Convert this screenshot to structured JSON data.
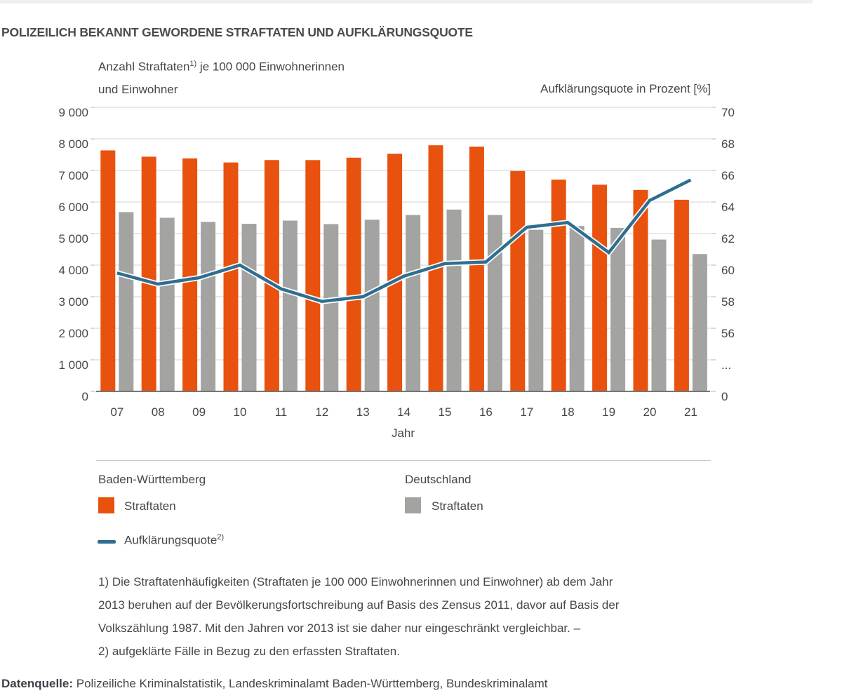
{
  "page": {
    "title": "POLIZEILICH BEKANNT GEWORDENE STRAFTATEN UND AUFKLÄRUNGSQUOTE",
    "source_label": "Datenquelle:",
    "source_text": " Polizeiliche Kriminalstatistik, Landeskriminalamt Baden-Württemberg, Bundeskriminalamt"
  },
  "colors": {
    "bw_bar": "#e8520e",
    "de_bar": "#a3a3a2",
    "clearance_line": "#2f6e91",
    "line_casing": "#ffffff",
    "gridline": "#dcdcdc",
    "tick": "#c6c6c6",
    "axis_line": "#767676",
    "text": "#43484d"
  },
  "chart_data": {
    "type": "bar",
    "subtype": "grouped bars with secondary-axis line",
    "title": "Polizeilich bekannt gewordene Straftaten und Aufklärungsquote",
    "xlabel": "Jahr",
    "x": [
      "07",
      "08",
      "09",
      "10",
      "11",
      "12",
      "13",
      "14",
      "15",
      "16",
      "17",
      "18",
      "19",
      "20",
      "21"
    ],
    "left_axis": {
      "title_part1": "Anzahl Straftaten",
      "title_sup": "1)",
      "title_part2": " je 100 000 Einwohnerinnen",
      "title_line2": "und Einwohner",
      "range": [
        0,
        9000
      ],
      "tick_step": 1000,
      "tick_labels_bottom_to_top": [
        "0",
        "1 000",
        "2 000",
        "3 000",
        "4 000",
        "5 000",
        "6 000",
        "7 000",
        "8 000",
        "9 000"
      ]
    },
    "right_axis": {
      "title": "Aufklärungsquote in Prozent [%]",
      "range_note": "axis break between 0 and 56, then 56-70 in steps of 2",
      "tick_labels_bottom_to_top": [
        "0",
        "...",
        "56",
        "58",
        "60",
        "62",
        "64",
        "66",
        "68",
        "70"
      ]
    },
    "grid": true,
    "legend_position": "below chart",
    "series": [
      {
        "name": "Baden-Württemberg Straftaten",
        "type": "bar",
        "axis": "left",
        "color": "#e8520e",
        "values": [
          7635,
          7436,
          7383,
          7253,
          7328,
          7327,
          7404,
          7530,
          7797,
          7755,
          6982,
          6710,
          6548,
          6381,
          6070
        ]
      },
      {
        "name": "Deutschland Straftaten",
        "type": "bar",
        "axis": "left",
        "color": "#a3a3a2",
        "values": [
          5680,
          5500,
          5370,
          5310,
          5410,
          5300,
          5440,
          5590,
          5760,
          5590,
          5120,
          5240,
          5180,
          4810,
          4350
        ]
      },
      {
        "name": "Aufklärungsquote (Baden-Württemberg)",
        "type": "line",
        "axis": "right",
        "color": "#2f6e91",
        "values": [
          59.5,
          58.8,
          59.2,
          60.0,
          58.5,
          57.7,
          58.0,
          59.3,
          60.1,
          60.2,
          62.4,
          62.7,
          60.8,
          64.1,
          65.4
        ]
      }
    ]
  },
  "legend": {
    "groups": [
      {
        "heading": "Baden-Württemberg",
        "bar_label": "Straftaten",
        "line_label": "Aufklärungsquote",
        "line_label_sup": "2)"
      },
      {
        "heading": "Deutschland",
        "bar_label": "Straftaten"
      }
    ]
  },
  "footnotes": [
    "1) Die Straftatenhäufigkeiten (Straftaten je 100 000 Einwohnerinnen und Einwohner) ab dem Jahr",
    "2013 beruhen auf der Bevölkerungsfortschreibung auf Basis des Zensus 2011, davor auf Basis der",
    "Volkszählung 1987. Mit den Jahren vor 2013 ist sie daher nur eingeschränkt vergleichbar. –",
    "2) aufgeklärte Fälle in Bezug zu den erfassten Straftaten."
  ]
}
